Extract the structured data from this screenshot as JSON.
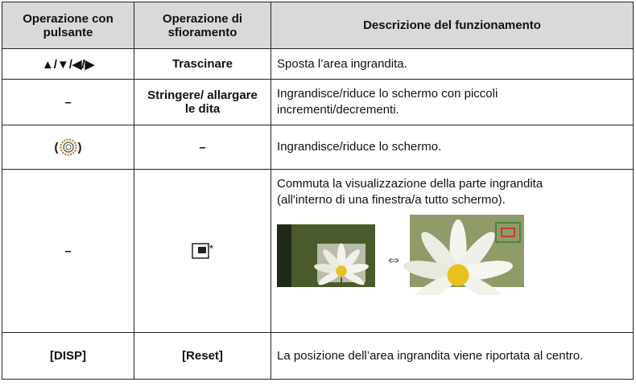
{
  "table": {
    "header": [
      "Operazione con pulsante",
      "Operazione di sfioramento",
      "Descrizione del funzionamento"
    ],
    "rows": [
      [
        "▲/▼/◀/▶",
        "Trascinare",
        "Sposta l’area ingrandita."
      ],
      [
        "–",
        "Stringere/ allargare le dita",
        "Ingrandisce/riduce lo schermo con piccoli incrementi/decrementi."
      ],
      [
        {
          "open": "(",
          "close": ")"
        },
        "–",
        "Ingrandisce/riduce lo schermo."
      ],
      [
        "–",
        {
          "mark": "*"
        },
        "Commuta la visualizzazione della parte ingrandita (all'interno di una finestra/a tutto schermo)."
      ],
      [
        "[DISP]",
        "[Reset]",
        "La posizione dell’area ingrandita viene riportata al centro."
      ]
    ]
  }
}
